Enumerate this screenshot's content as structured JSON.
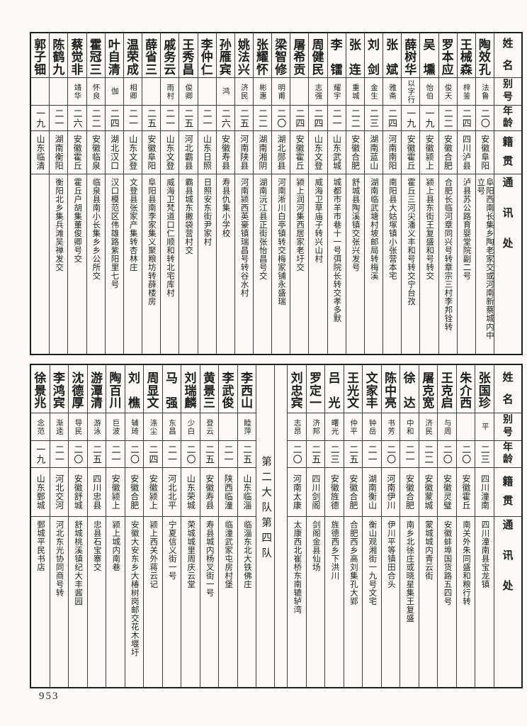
{
  "page": {
    "number": "953"
  },
  "headers": {
    "name": "姓名",
    "alias": "别号",
    "age": "年龄",
    "origin": "籍贯",
    "address": "通讯处"
  },
  "top_table": {
    "people": [
      {
        "name": "陶效孔",
        "alias": "法鲁",
        "age": "二〇",
        "origin": "安徽阜阳",
        "address": "阜阳西南长集乡陶老家交或河南新蔡城内中立号"
      },
      {
        "name": "王械森",
        "alias": "梓鉴",
        "age": "二四",
        "origin": "四川泸县",
        "address": "泸县苏公路育婴堂院副二号"
      },
      {
        "name": "罗本应",
        "alias": "俊天",
        "age": "二二",
        "origin": "安徽合肥",
        "address": "合肥长临河章同兴号转章宗三村李邦铨转"
      },
      {
        "name": "吴壎",
        "alias": "怡伯",
        "age": "一九",
        "origin": "安徽颍上",
        "address": "颍上县东街王复盛和号转交"
      },
      {
        "name": "薛树华",
        "alias": "以字行",
        "age": "一九",
        "origin": "安徽霍丘",
        "address": "霍丘三河尖潘义丰和号转交宁台孜"
      },
      {
        "name": "张斌",
        "alias": "雅斋",
        "age": "二四",
        "origin": "河南南阳",
        "address": "南阳县大姑塚镇小张营本宅"
      },
      {
        "name": "刘剑",
        "alias": "金生",
        "age": "二三",
        "origin": "湖南蓝山",
        "address": "湖南临武塘村坡邮局转梅溪"
      },
      {
        "name": "张连",
        "alias": "重城",
        "age": "二二",
        "origin": "安徽合肥",
        "address": "舒城县陶溪镇交张兴发号"
      },
      {
        "name": "李镭",
        "alias": "耀宇",
        "age": "二一",
        "origin": "山东武城",
        "address": "城都市羊市巷十一号弭院长转交孝多默"
      },
      {
        "name": "周健民",
        "alias": "志强",
        "age": "二四",
        "origin": "山东文登",
        "address": "威海卫草庙子转兴山村"
      },
      {
        "name": "屠希贡",
        "alias": "",
        "age": "二四",
        "origin": "安徽霍丘",
        "address": "颍上润河集西居家老圩交"
      },
      {
        "name": "梁智修",
        "alias": "明甫",
        "age": "二〇",
        "origin": "湖北郧县",
        "address": "河南淅川白亭镇转交梅家铺永盛瑞"
      },
      {
        "name": "张耀怀",
        "alias": "彬惠",
        "age": "二二",
        "origin": "湖南湘阴",
        "address": "湖南沅江县正街张怡昌号交"
      },
      {
        "name": "姚法兴",
        "alias": "济民",
        "age": "二五",
        "origin": "河南陕县",
        "address": "河南颍西英豪镇瑞昌号转谷水村"
      },
      {
        "name": "孙雁宾",
        "alias": "鸿",
        "age": "二六",
        "origin": "安徽寿县",
        "address": "寿县仇集小学校"
      },
      {
        "name": "李仲仁",
        "alias": "",
        "age": "二一",
        "origin": "山东日照",
        "address": "日照安东街尹家村"
      },
      {
        "name": "王秀昌",
        "alias": "俊卿",
        "age": "二五",
        "origin": "河北霸县",
        "address": "霸县城东撇袋营村交"
      },
      {
        "name": "戚务云",
        "alias": "雨村",
        "age": "二一",
        "origin": "山东文登",
        "address": "威海卫梵道口仁顺和转北宅库村"
      },
      {
        "name": "薛省三",
        "alias": "",
        "age": "二五",
        "origin": "安徽阜阳",
        "address": "阜阳县南李家集义聚粮坊转薛楼房"
      },
      {
        "name": "温荣成",
        "alias": "相卿",
        "age": "二一",
        "origin": "山东文登",
        "address": "文登县张家产集转杏林庄"
      },
      {
        "name": "叶自清",
        "alias": "伽",
        "age": "二四",
        "origin": "湖北汉口",
        "address": "汉口模范区伟雄路紫阳里七号"
      },
      {
        "name": "霍冠三",
        "alias": "怀良",
        "age": "二二",
        "origin": "安徽临泉",
        "address": "临泉县南小长集乡乡公所交"
      },
      {
        "name": "蔡觉非",
        "alias": "靖华",
        "age": "二六",
        "origin": "安徽霍丘",
        "address": "霍丘户胡集董俊卿号交"
      },
      {
        "name": "陈鹤九",
        "alias": "",
        "age": "二一",
        "origin": "湖南衡阳",
        "address": "衡阳北乡集兵滩吴禅发交"
      },
      {
        "name": "郭子钿",
        "alias": "",
        "age": "一九",
        "origin": "山东临清",
        "address": ""
      }
    ]
  },
  "bottom_table": {
    "divider_label": "第二大队第四队",
    "people_right": [
      {
        "name": "张国珍",
        "alias": "平",
        "age": "二三",
        "origin": "四川潼南",
        "address": "四川潼南县宝龙镇"
      },
      {
        "name": "朱介西",
        "alias": "",
        "age": "二〇",
        "origin": "安徽霍丘",
        "address": "南关外朱同盛和粮行转"
      },
      {
        "name": "王克启",
        "alias": "与周",
        "age": "二〇",
        "origin": "安徽灵璧",
        "address": "安徽蚌埠国货路五四号"
      },
      {
        "name": "屠克宽",
        "alias": "济民",
        "age": "二二",
        "origin": "安徽蒙城",
        "address": "蒙城城内青云街"
      },
      {
        "name": "徐达",
        "alias": "中和",
        "age": "二一",
        "origin": "安徽合肥",
        "address": "南乡北徐庄或晓星集王复盛"
      },
      {
        "name": "陈中亮",
        "alias": "书芳",
        "age": "二〇",
        "origin": "河南伊川",
        "address": "伊川平等镇田合头"
      },
      {
        "name": "文家丰",
        "alias": "钟岳",
        "age": "二一",
        "origin": "湖南衡山",
        "address": "衡山观湘街一九号文宅"
      },
      {
        "name": "王光文",
        "alias": "仲平",
        "age": "二五",
        "origin": "安徽合肥",
        "address": "合肥西乡高刘集孔大郢"
      },
      {
        "name": "吕光",
        "alias": "曙光",
        "age": "二三",
        "origin": "安徽旌德",
        "address": "旌德西乡下洪川"
      },
      {
        "name": "罗定一",
        "alias": "济邦",
        "age": "二五",
        "origin": "四川剑阁",
        "address": "剑阁金县仙场"
      },
      {
        "name": "刘忠宾",
        "alias": "志昂",
        "age": "二〇",
        "origin": "河南太康",
        "address": "太康西北崔桥东南辘轳湾"
      }
    ],
    "people_left": [
      {
        "name": "李西山",
        "alias": "睦萍",
        "age": "二五",
        "origin": "山东临淄",
        "address": "临淄东北大铁佛庄"
      },
      {
        "name": "李武俊",
        "alias": "",
        "age": "二一",
        "origin": "陕西临潼",
        "address": "临潼武家屯房村堡"
      },
      {
        "name": "黄景三",
        "alias": "登云",
        "age": "二五",
        "origin": "安徽寿县",
        "address": "寿县城内杨叉街一号"
      },
      {
        "name": "刘瑞麟",
        "alias": "少白",
        "age": "二〇",
        "origin": "山东荣城",
        "address": "荣城城里周庆云堂"
      },
      {
        "name": "马强",
        "alias": "东昌",
        "age": "二一",
        "origin": "河北北平",
        "address": "宁夏信义街一号"
      },
      {
        "name": "周显文",
        "alias": "涤尘",
        "age": "二四",
        "origin": "安徽颍上",
        "address": "颍上西关外蒋云记"
      },
      {
        "name": "刘樵",
        "alias": "辅琦",
        "age": "二〇",
        "origin": "安徽合肥",
        "address": "安徽大安东乡大椿树岗邮交花木堰圩"
      },
      {
        "name": "陶百川",
        "alias": "巨波",
        "age": "二一",
        "origin": "安徽颍上",
        "address": "颍上城内南巷"
      },
      {
        "name": "游潭清",
        "alias": "游泳",
        "age": "二五",
        "origin": "四川忠县",
        "address": "忠县石宝寨交"
      },
      {
        "name": "沈德厚",
        "alias": "导民",
        "age": "二〇",
        "origin": "安徽舒城",
        "address": "舒城桃溪镇纪大丰酱园"
      },
      {
        "name": "李鸿宾",
        "alias": "渐逵",
        "age": "二一",
        "origin": "河北交河",
        "address": "河北东光协同商号转"
      },
      {
        "name": "徐景兆",
        "alias": "念范",
        "age": "一九",
        "origin": "山东鄄城",
        "address": "鄄城平民书店"
      }
    ]
  }
}
